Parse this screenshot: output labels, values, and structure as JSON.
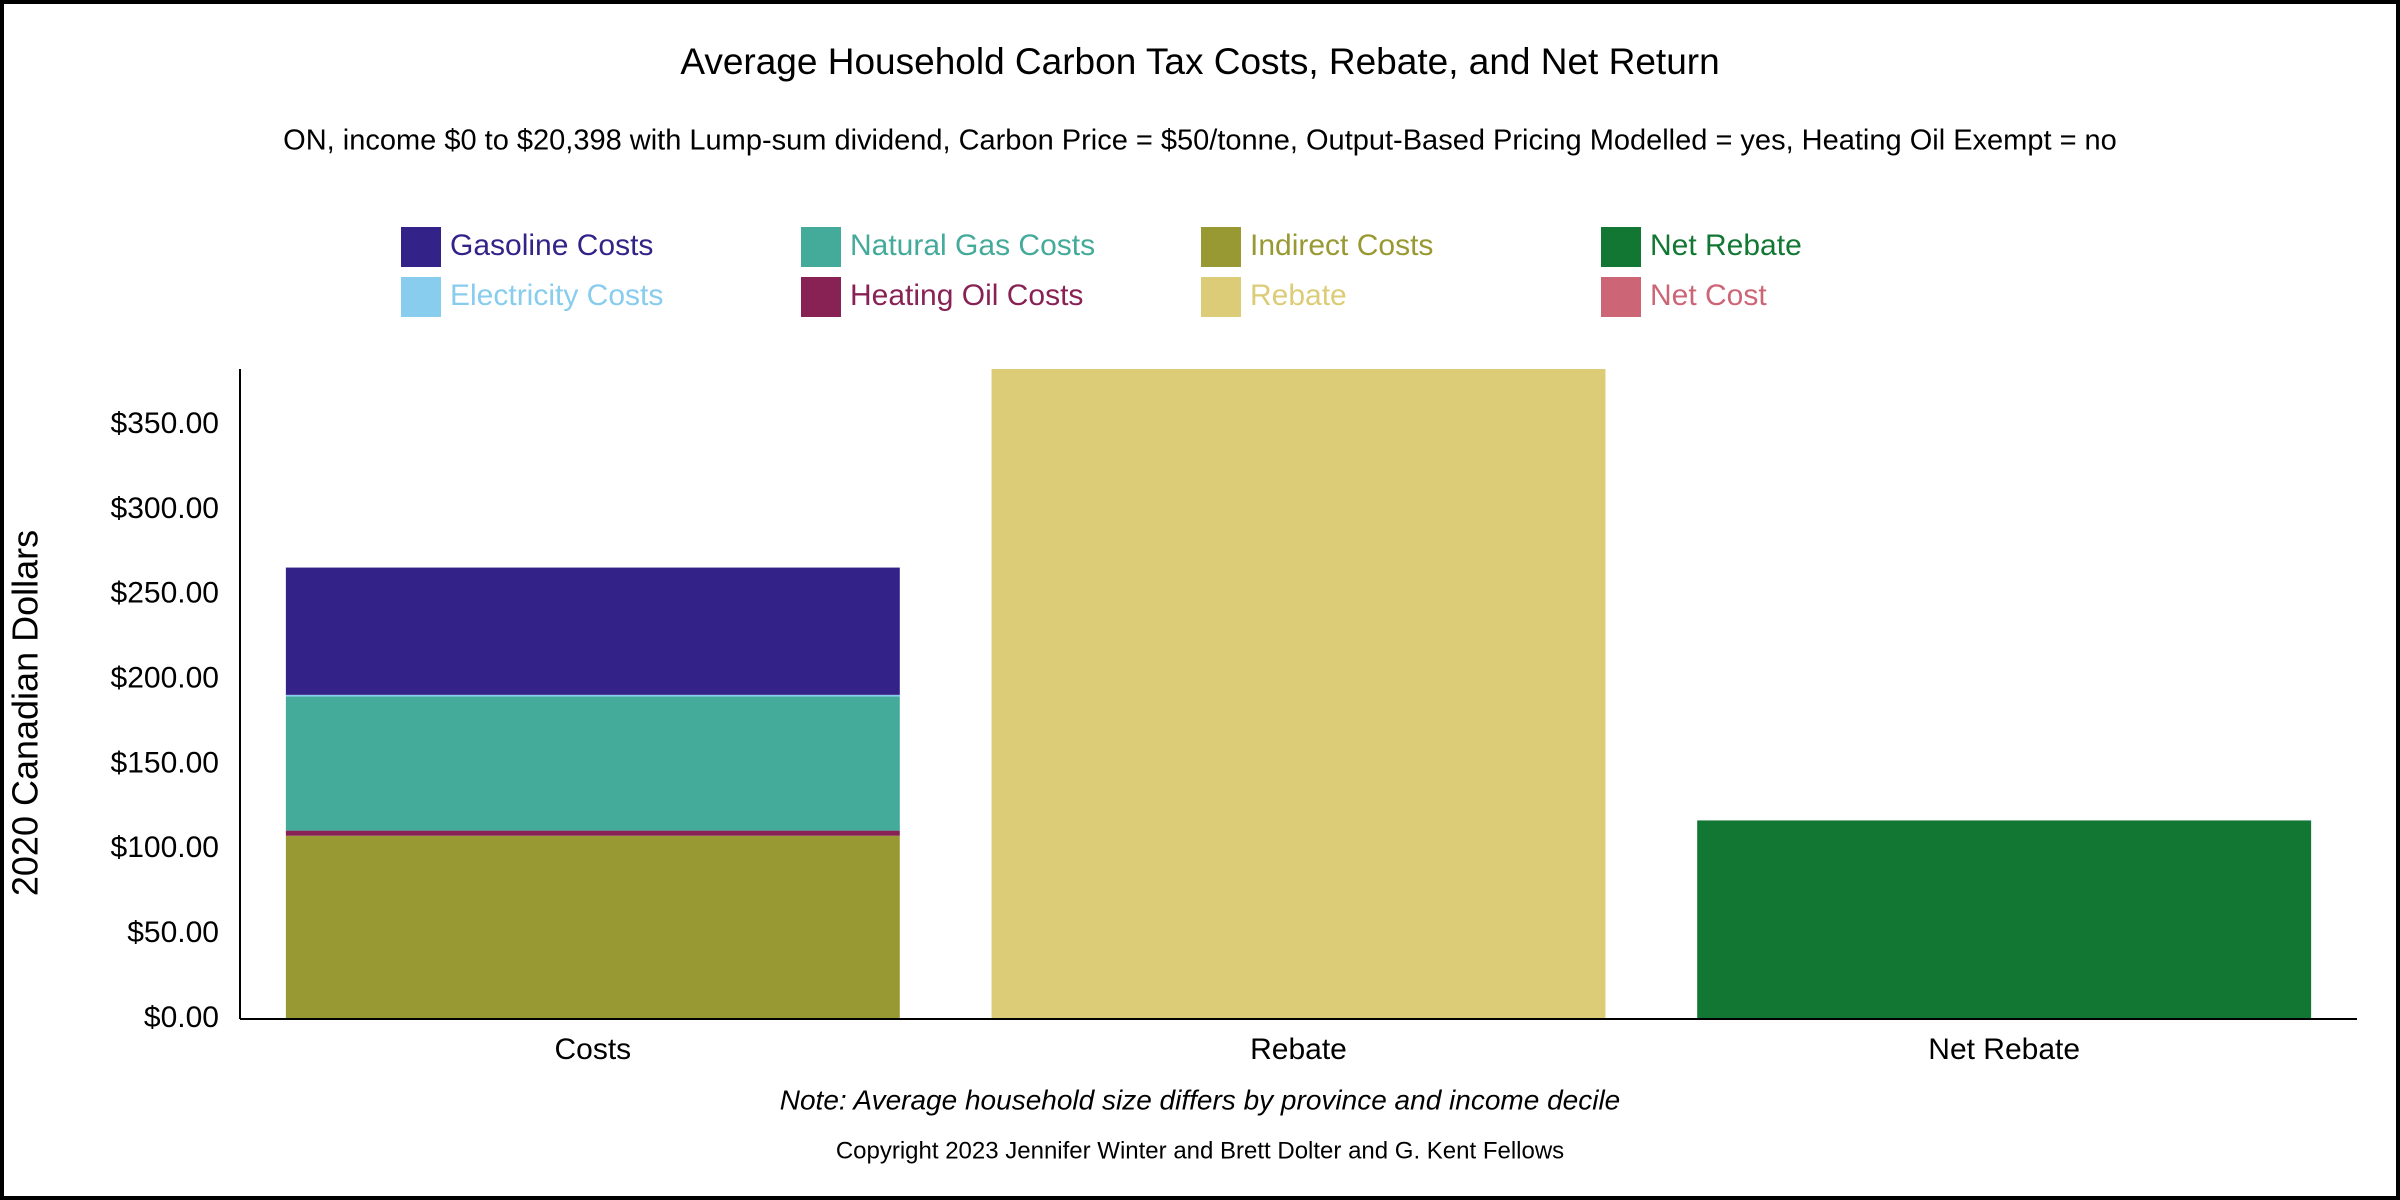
{
  "chart_data": {
    "type": "bar",
    "stacked": true,
    "title": "Average Household Carbon Tax Costs, Rebate, and Net Return",
    "subtitle": "ON, income $0 to $20,398 with Lump-sum dividend, Carbon Price = $50/tonne, Output-Based Pricing Modelled = yes, Heating Oil Exempt = no",
    "y_label": "2020 Canadian Dollars",
    "note": "Note: Average household size differs by province and income decile",
    "copyright": "Copyright 2023 Jennifer Winter and Brett Dolter and G. Kent Fellows",
    "categories": [
      "Costs",
      "Rebate",
      "Net Rebate"
    ],
    "series": [
      {
        "name": "Gasoline Costs",
        "color": "#332288",
        "values": [
          75,
          null,
          null
        ]
      },
      {
        "name": "Electricity Costs",
        "color": "#88ccee",
        "values": [
          1,
          null,
          null
        ]
      },
      {
        "name": "Natural Gas Costs",
        "color": "#44aa99",
        "values": [
          79,
          null,
          null
        ]
      },
      {
        "name": "Heating Oil Costs",
        "color": "#882255",
        "values": [
          3,
          null,
          null
        ]
      },
      {
        "name": "Indirect Costs",
        "color": "#999933",
        "values": [
          108,
          null,
          null
        ]
      },
      {
        "name": "Rebate",
        "color": "#ddcc77",
        "values": [
          null,
          383,
          null
        ]
      },
      {
        "name": "Net Rebate",
        "color": "#117733",
        "values": [
          null,
          null,
          117
        ]
      },
      {
        "name": "Net Cost",
        "color": "#cc6677",
        "values": [
          null,
          null,
          null
        ]
      }
    ],
    "ylim": [
      0,
      383
    ],
    "yticks": [
      {
        "value": 0,
        "label": "$0.00"
      },
      {
        "value": 50,
        "label": "$50.00"
      },
      {
        "value": 100,
        "label": "$100.00"
      },
      {
        "value": 150,
        "label": "$150.00"
      },
      {
        "value": 200,
        "label": "$200.00"
      },
      {
        "value": 250,
        "label": "$250.00"
      },
      {
        "value": 300,
        "label": "$300.00"
      },
      {
        "value": 350,
        "label": "$350.00"
      }
    ],
    "grid": false
  }
}
